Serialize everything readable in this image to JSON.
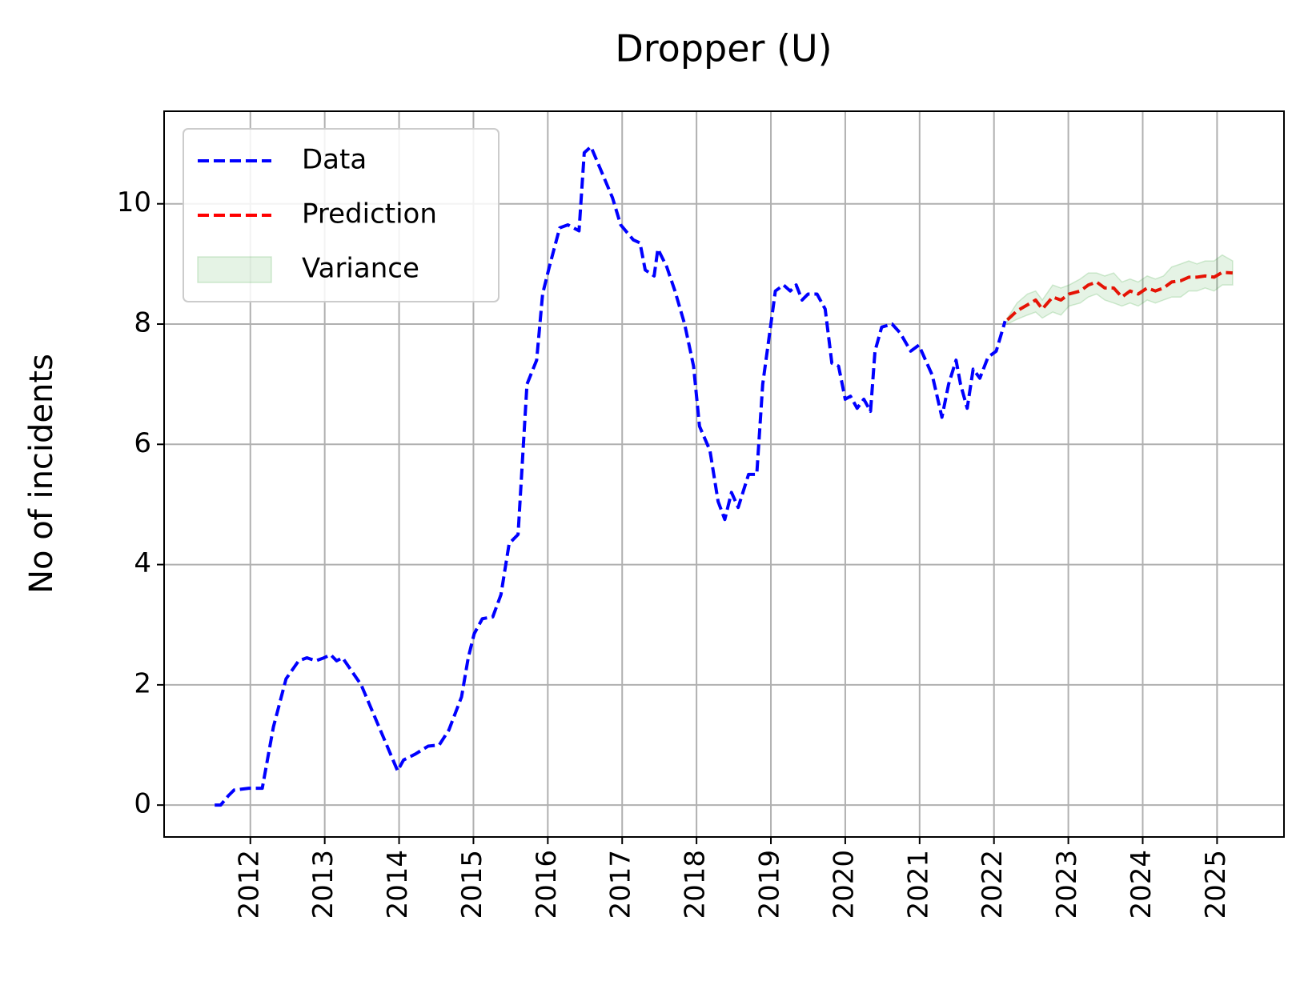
{
  "chart_data": {
    "type": "line",
    "title": "Dropper (U)",
    "y_label": "No of incidents",
    "xlim": [
      2010.84,
      2025.9
    ],
    "ylim": [
      -0.53,
      11.54
    ],
    "xticks": [
      2012,
      2013,
      2014,
      2015,
      2016,
      2017,
      2018,
      2019,
      2020,
      2021,
      2022,
      2023,
      2024,
      2025
    ],
    "yticks": [
      0,
      2,
      4,
      6,
      8,
      10
    ],
    "grid": true,
    "legend": "upper left",
    "series": [
      {
        "name": "Data",
        "color": "#0000ff",
        "x": [
          2011.52,
          2011.6,
          2011.7,
          2011.78,
          2011.98,
          2012.16,
          2012.31,
          2012.48,
          2012.65,
          2012.76,
          2012.88,
          2012.99,
          2013.08,
          2013.16,
          2013.24,
          2013.49,
          2013.72,
          2013.98,
          2014.06,
          2014.22,
          2014.39,
          2014.54,
          2014.67,
          2014.84,
          2014.93,
          2015.01,
          2015.12,
          2015.26,
          2015.37,
          2015.48,
          2015.6,
          2015.72,
          2015.85,
          2015.93,
          2016.02,
          2016.16,
          2016.27,
          2016.42,
          2016.49,
          2016.58,
          2016.7,
          2016.87,
          2016.98,
          2017.15,
          2017.24,
          2017.31,
          2017.43,
          2017.48,
          2017.6,
          2017.71,
          2017.84,
          2017.96,
          2018.04,
          2018.18,
          2018.29,
          2018.38,
          2018.47,
          2018.56,
          2018.7,
          2018.81,
          2018.89,
          2019.0,
          2019.06,
          2019.17,
          2019.26,
          2019.34,
          2019.42,
          2019.5,
          2019.62,
          2019.73,
          2019.82,
          2019.91,
          2020.0,
          2020.07,
          2020.16,
          2020.25,
          2020.34,
          2020.4,
          2020.49,
          2020.63,
          2020.74,
          2020.88,
          2020.99,
          2021.17,
          2021.3,
          2021.39,
          2021.49,
          2021.55,
          2021.64,
          2021.72,
          2021.81,
          2021.92,
          2022.03,
          2022.15
        ],
        "values": [
          0,
          0,
          0.15,
          0.25,
          0.28,
          0.28,
          1.3,
          2.1,
          2.4,
          2.45,
          2.4,
          2.45,
          2.5,
          2.4,
          2.45,
          2.0,
          1.33,
          0.57,
          0.75,
          0.85,
          0.98,
          1.0,
          1.25,
          1.8,
          2.45,
          2.85,
          3.1,
          3.13,
          3.5,
          4.35,
          4.5,
          7.0,
          7.4,
          8.5,
          8.95,
          9.6,
          9.65,
          9.55,
          10.85,
          10.95,
          10.6,
          10.1,
          9.65,
          9.4,
          9.35,
          8.9,
          8.8,
          9.25,
          8.95,
          8.55,
          8.0,
          7.3,
          6.3,
          5.9,
          5.05,
          4.75,
          5.2,
          4.95,
          5.5,
          5.5,
          7.0,
          8.0,
          8.55,
          8.65,
          8.55,
          8.65,
          8.4,
          8.5,
          8.5,
          8.25,
          7.35,
          7.3,
          6.75,
          6.8,
          6.6,
          6.75,
          6.55,
          7.55,
          7.95,
          8.0,
          7.85,
          7.55,
          7.65,
          7.15,
          6.45,
          7.0,
          7.4,
          7.0,
          6.6,
          7.25,
          7.1,
          7.45,
          7.55,
          8.05
        ]
      },
      {
        "name": "Prediction",
        "color": "#ff0000",
        "x": [
          2022.18,
          2022.31,
          2022.45,
          2022.56,
          2022.65,
          2022.79,
          2022.9,
          2023.01,
          2023.16,
          2023.27,
          2023.38,
          2023.49,
          2023.61,
          2023.72,
          2023.83,
          2023.94,
          2024.06,
          2024.17,
          2024.28,
          2024.39,
          2024.51,
          2024.62,
          2024.73,
          2024.84,
          2024.96,
          2025.07,
          2025.21
        ],
        "values": [
          8.07,
          8.22,
          8.32,
          8.4,
          8.25,
          8.45,
          8.4,
          8.5,
          8.55,
          8.65,
          8.7,
          8.6,
          8.6,
          8.45,
          8.55,
          8.5,
          8.6,
          8.55,
          8.6,
          8.7,
          8.72,
          8.78,
          8.78,
          8.8,
          8.78,
          8.86,
          8.85
        ]
      },
      {
        "name": "Variance",
        "color": "#2ca02c",
        "x": [
          2022.18,
          2022.31,
          2022.45,
          2022.56,
          2022.65,
          2022.79,
          2022.9,
          2023.01,
          2023.16,
          2023.27,
          2023.38,
          2023.49,
          2023.61,
          2023.72,
          2023.83,
          2023.94,
          2024.06,
          2024.17,
          2024.28,
          2024.39,
          2024.51,
          2024.62,
          2024.73,
          2024.84,
          2024.96,
          2025.07,
          2025.21
        ],
        "lower": [
          8.0,
          8.08,
          8.15,
          8.2,
          8.1,
          8.2,
          8.15,
          8.3,
          8.35,
          8.45,
          8.5,
          8.4,
          8.35,
          8.3,
          8.35,
          8.3,
          8.4,
          8.35,
          8.4,
          8.45,
          8.45,
          8.55,
          8.55,
          8.6,
          8.55,
          8.65,
          8.65
        ],
        "upper": [
          8.1,
          8.35,
          8.5,
          8.55,
          8.4,
          8.65,
          8.6,
          8.65,
          8.75,
          8.85,
          8.85,
          8.8,
          8.85,
          8.7,
          8.75,
          8.7,
          8.8,
          8.75,
          8.8,
          8.95,
          9.0,
          9.05,
          9.0,
          9.05,
          9.05,
          9.15,
          9.05
        ]
      }
    ]
  }
}
